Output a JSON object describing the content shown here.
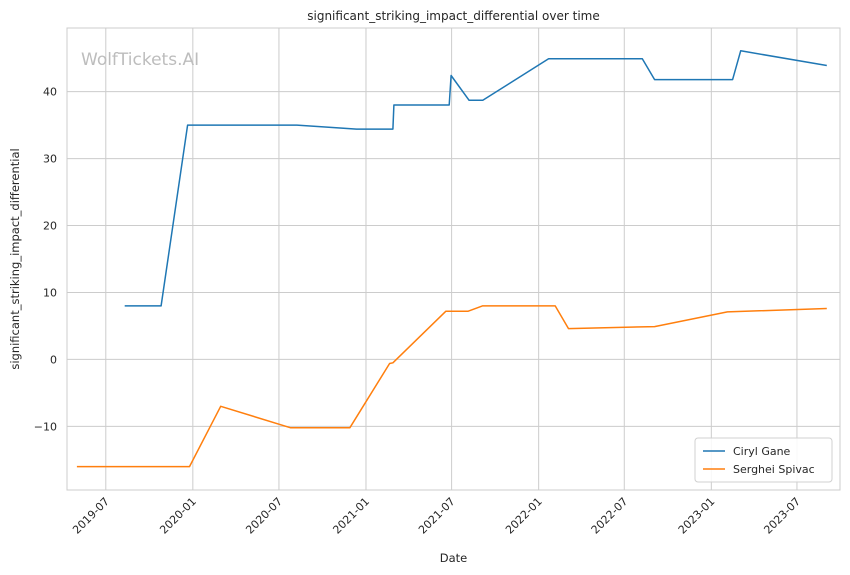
{
  "chart_data": {
    "type": "line",
    "title": "significant_striking_impact_differential over time",
    "xlabel": "Date",
    "ylabel": "significant_striking_impact_differential",
    "watermark": "WolfTickets.AI",
    "xlim": [
      "2019-04-10",
      "2023-09-30"
    ],
    "ylim": [
      -19.5,
      49.5
    ],
    "x_ticks": [
      "2019-07",
      "2020-01",
      "2020-07",
      "2021-01",
      "2021-07",
      "2022-01",
      "2022-07",
      "2023-01",
      "2023-07"
    ],
    "y_ticks": [
      -10,
      0,
      10,
      20,
      30,
      40
    ],
    "y_tick_labels": [
      "−10",
      "0",
      "10",
      "20",
      "30",
      "40"
    ],
    "grid": true,
    "legend_position": "lower-right",
    "series": [
      {
        "name": "Ciryl Gane",
        "color": "#1f77b4",
        "points": [
          [
            "2019-08-10",
            8.0
          ],
          [
            "2019-10-26",
            8.0
          ],
          [
            "2019-12-21",
            35.0
          ],
          [
            "2020-08-08",
            35.0
          ],
          [
            "2020-12-12",
            34.4
          ],
          [
            "2021-02-27",
            34.4
          ],
          [
            "2021-03-01",
            38.0
          ],
          [
            "2021-06-26",
            38.0
          ],
          [
            "2021-06-30",
            42.4
          ],
          [
            "2021-08-07",
            38.7
          ],
          [
            "2021-09-05",
            38.7
          ],
          [
            "2022-01-22",
            44.9
          ],
          [
            "2022-08-08",
            44.9
          ],
          [
            "2022-09-03",
            41.8
          ],
          [
            "2023-02-15",
            41.8
          ],
          [
            "2023-03-04",
            46.1
          ],
          [
            "2023-09-02",
            43.9
          ]
        ]
      },
      {
        "name": "Serghei Spivac",
        "color": "#ff7f0e",
        "points": [
          [
            "2019-05-01",
            -16.0
          ],
          [
            "2019-12-25",
            -16.0
          ],
          [
            "2020-02-29",
            -7.0
          ],
          [
            "2020-07-25",
            -10.2
          ],
          [
            "2020-11-28",
            -10.2
          ],
          [
            "2021-02-20",
            -0.6
          ],
          [
            "2021-02-27",
            -0.5
          ],
          [
            "2021-06-19",
            7.2
          ],
          [
            "2021-08-05",
            7.2
          ],
          [
            "2021-09-04",
            8.0
          ],
          [
            "2022-02-05",
            8.0
          ],
          [
            "2022-03-05",
            4.6
          ],
          [
            "2022-09-03",
            4.9
          ],
          [
            "2023-02-04",
            7.1
          ],
          [
            "2023-09-02",
            7.6
          ]
        ]
      }
    ]
  }
}
